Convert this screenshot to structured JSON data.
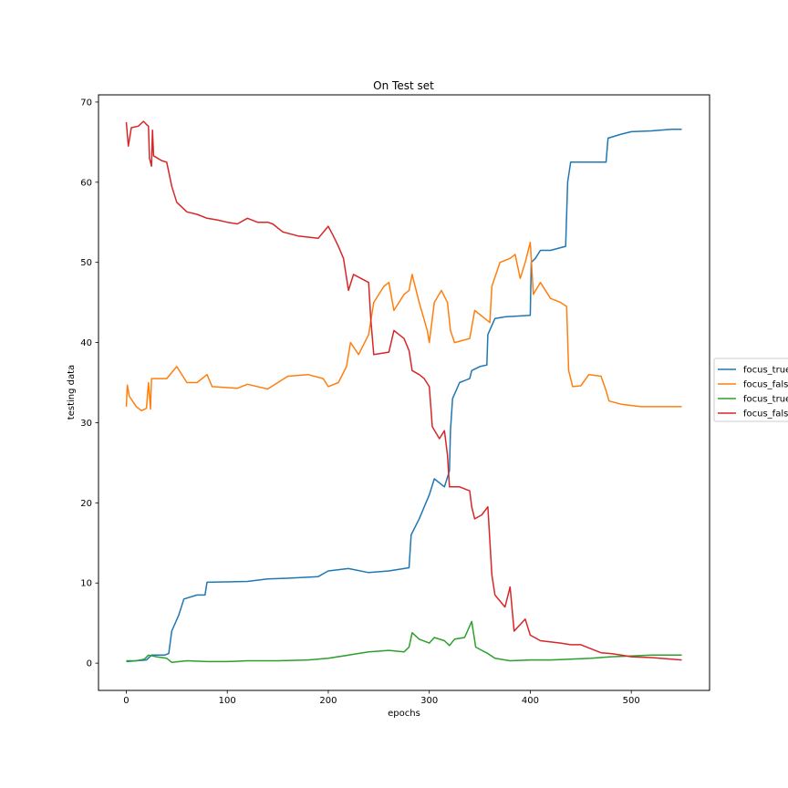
{
  "chart_data": {
    "type": "line",
    "title": "On Test set",
    "xlabel": "epochs",
    "ylabel": "testing data",
    "xlim": [
      -27.5,
      577.5
    ],
    "ylim": [
      -3.4,
      70.9
    ],
    "xticks": [
      0,
      100,
      200,
      300,
      400,
      500
    ],
    "yticks": [
      0,
      10,
      20,
      30,
      40,
      50,
      60,
      70
    ],
    "grid": false,
    "legend_position": "center-right (outside plot, clipped)",
    "series": [
      {
        "name": "focus_true",
        "color": "#1f77b4",
        "points": [
          [
            0,
            0.2
          ],
          [
            20,
            0.4
          ],
          [
            25,
            1.0
          ],
          [
            38,
            1.0
          ],
          [
            42,
            1.2
          ],
          [
            45,
            4.0
          ],
          [
            52,
            6.0
          ],
          [
            57,
            8.0
          ],
          [
            70,
            8.5
          ],
          [
            78,
            8.5
          ],
          [
            80,
            10.1
          ],
          [
            120,
            10.2
          ],
          [
            140,
            10.5
          ],
          [
            160,
            10.6
          ],
          [
            190,
            10.8
          ],
          [
            200,
            11.5
          ],
          [
            220,
            11.8
          ],
          [
            240,
            11.3
          ],
          [
            260,
            11.5
          ],
          [
            280,
            11.9
          ],
          [
            282,
            16.0
          ],
          [
            290,
            18.0
          ],
          [
            300,
            21.0
          ],
          [
            305,
            23.0
          ],
          [
            315,
            22.0
          ],
          [
            320,
            24.0
          ],
          [
            321,
            29.0
          ],
          [
            323,
            33.0
          ],
          [
            330,
            35.0
          ],
          [
            340,
            35.5
          ],
          [
            342,
            36.5
          ],
          [
            350,
            37.0
          ],
          [
            357,
            37.2
          ],
          [
            358,
            41.0
          ],
          [
            365,
            43.0
          ],
          [
            375,
            43.2
          ],
          [
            400,
            43.4
          ],
          [
            401,
            50.0
          ],
          [
            405,
            50.5
          ],
          [
            410,
            51.5
          ],
          [
            420,
            51.5
          ],
          [
            435,
            52.0
          ],
          [
            437,
            60.0
          ],
          [
            440,
            62.5
          ],
          [
            450,
            62.5
          ],
          [
            460,
            62.5
          ],
          [
            475,
            62.5
          ],
          [
            477,
            65.5
          ],
          [
            490,
            66.0
          ],
          [
            500,
            66.3
          ],
          [
            520,
            66.4
          ],
          [
            540,
            66.6
          ],
          [
            550,
            66.6
          ]
        ]
      },
      {
        "name": "focus_fals",
        "color": "#ff7f0e",
        "points": [
          [
            0,
            32.0
          ],
          [
            1,
            34.7
          ],
          [
            3,
            33.3
          ],
          [
            10,
            32.0
          ],
          [
            15,
            31.5
          ],
          [
            20,
            31.8
          ],
          [
            22,
            35.0
          ],
          [
            24,
            31.7
          ],
          [
            25,
            35.5
          ],
          [
            40,
            35.5
          ],
          [
            50,
            37.0
          ],
          [
            60,
            35.0
          ],
          [
            70,
            35.0
          ],
          [
            80,
            36.0
          ],
          [
            85,
            34.5
          ],
          [
            110,
            34.3
          ],
          [
            120,
            34.8
          ],
          [
            140,
            34.2
          ],
          [
            150,
            35.0
          ],
          [
            160,
            35.8
          ],
          [
            180,
            36.0
          ],
          [
            195,
            35.5
          ],
          [
            200,
            34.5
          ],
          [
            210,
            35.0
          ],
          [
            218,
            37.0
          ],
          [
            222,
            40.0
          ],
          [
            230,
            38.5
          ],
          [
            240,
            41.0
          ],
          [
            245,
            45.0
          ],
          [
            255,
            47.0
          ],
          [
            260,
            47.5
          ],
          [
            265,
            44.0
          ],
          [
            270,
            45.0
          ],
          [
            275,
            46.0
          ],
          [
            280,
            46.5
          ],
          [
            283,
            48.5
          ],
          [
            290,
            45.0
          ],
          [
            298,
            41.5
          ],
          [
            300,
            40.0
          ],
          [
            305,
            45.0
          ],
          [
            312,
            46.5
          ],
          [
            318,
            45.0
          ],
          [
            321,
            41.5
          ],
          [
            325,
            40.0
          ],
          [
            340,
            40.5
          ],
          [
            345,
            44.0
          ],
          [
            355,
            43.0
          ],
          [
            360,
            42.5
          ],
          [
            362,
            47.0
          ],
          [
            370,
            50.0
          ],
          [
            380,
            50.5
          ],
          [
            385,
            51.0
          ],
          [
            390,
            48.0
          ],
          [
            395,
            50.0
          ],
          [
            400,
            52.5
          ],
          [
            403,
            46.0
          ],
          [
            410,
            47.5
          ],
          [
            420,
            45.5
          ],
          [
            430,
            45.0
          ],
          [
            436,
            44.5
          ],
          [
            438,
            36.5
          ],
          [
            442,
            34.5
          ],
          [
            450,
            34.6
          ],
          [
            458,
            36.0
          ],
          [
            470,
            35.8
          ],
          [
            475,
            34.0
          ],
          [
            478,
            32.7
          ],
          [
            490,
            32.3
          ],
          [
            510,
            32.0
          ],
          [
            530,
            32.0
          ],
          [
            550,
            32.0
          ]
        ]
      },
      {
        "name": "focus_true",
        "color": "#2ca02c",
        "points": [
          [
            0,
            0.3
          ],
          [
            10,
            0.3
          ],
          [
            18,
            0.5
          ],
          [
            22,
            1.0
          ],
          [
            30,
            0.8
          ],
          [
            40,
            0.6
          ],
          [
            45,
            0.1
          ],
          [
            60,
            0.3
          ],
          [
            80,
            0.2
          ],
          [
            100,
            0.2
          ],
          [
            120,
            0.3
          ],
          [
            150,
            0.3
          ],
          [
            180,
            0.4
          ],
          [
            200,
            0.6
          ],
          [
            220,
            1.0
          ],
          [
            240,
            1.4
          ],
          [
            260,
            1.6
          ],
          [
            275,
            1.4
          ],
          [
            280,
            2.0
          ],
          [
            283,
            3.8
          ],
          [
            290,
            3.0
          ],
          [
            300,
            2.5
          ],
          [
            305,
            3.2
          ],
          [
            315,
            2.8
          ],
          [
            320,
            2.2
          ],
          [
            325,
            3.0
          ],
          [
            335,
            3.2
          ],
          [
            342,
            5.2
          ],
          [
            346,
            2.0
          ],
          [
            352,
            1.6
          ],
          [
            358,
            1.2
          ],
          [
            365,
            0.6
          ],
          [
            380,
            0.3
          ],
          [
            400,
            0.4
          ],
          [
            420,
            0.4
          ],
          [
            440,
            0.5
          ],
          [
            460,
            0.6
          ],
          [
            480,
            0.8
          ],
          [
            500,
            0.9
          ],
          [
            520,
            1.0
          ],
          [
            550,
            1.0
          ]
        ]
      },
      {
        "name": "focus_fals",
        "color": "#d62728",
        "points": [
          [
            0,
            67.5
          ],
          [
            2,
            64.5
          ],
          [
            5,
            66.8
          ],
          [
            12,
            67.0
          ],
          [
            17,
            67.6
          ],
          [
            20,
            67.2
          ],
          [
            22,
            67.0
          ],
          [
            23,
            63.0
          ],
          [
            25,
            62.0
          ],
          [
            26,
            66.5
          ],
          [
            27,
            63.3
          ],
          [
            35,
            62.7
          ],
          [
            40,
            62.5
          ],
          [
            45,
            59.5
          ],
          [
            50,
            57.5
          ],
          [
            60,
            56.3
          ],
          [
            70,
            56.0
          ],
          [
            80,
            55.5
          ],
          [
            90,
            55.3
          ],
          [
            100,
            55.0
          ],
          [
            110,
            54.8
          ],
          [
            120,
            55.5
          ],
          [
            130,
            55.0
          ],
          [
            140,
            55.0
          ],
          [
            145,
            54.8
          ],
          [
            155,
            53.8
          ],
          [
            170,
            53.3
          ],
          [
            190,
            53.0
          ],
          [
            200,
            54.5
          ],
          [
            205,
            53.3
          ],
          [
            210,
            52.0
          ],
          [
            215,
            50.5
          ],
          [
            220,
            46.5
          ],
          [
            225,
            48.5
          ],
          [
            240,
            47.5
          ],
          [
            242,
            43.0
          ],
          [
            245,
            38.5
          ],
          [
            260,
            38.8
          ],
          [
            265,
            41.5
          ],
          [
            270,
            41.0
          ],
          [
            275,
            40.5
          ],
          [
            280,
            39.0
          ],
          [
            283,
            36.5
          ],
          [
            290,
            36.0
          ],
          [
            295,
            35.5
          ],
          [
            300,
            34.5
          ],
          [
            303,
            29.5
          ],
          [
            310,
            28.0
          ],
          [
            315,
            29.0
          ],
          [
            318,
            26.0
          ],
          [
            320,
            22.0
          ],
          [
            330,
            22.0
          ],
          [
            340,
            21.5
          ],
          [
            342,
            19.5
          ],
          [
            345,
            18.0
          ],
          [
            352,
            18.5
          ],
          [
            358,
            19.5
          ],
          [
            362,
            11.0
          ],
          [
            365,
            8.5
          ],
          [
            375,
            7.0
          ],
          [
            380,
            9.5
          ],
          [
            384,
            4.0
          ],
          [
            395,
            5.5
          ],
          [
            400,
            3.5
          ],
          [
            410,
            2.8
          ],
          [
            430,
            2.5
          ],
          [
            440,
            2.3
          ],
          [
            450,
            2.3
          ],
          [
            460,
            1.8
          ],
          [
            470,
            1.3
          ],
          [
            480,
            1.2
          ],
          [
            490,
            1.0
          ],
          [
            500,
            0.8
          ],
          [
            520,
            0.7
          ],
          [
            540,
            0.5
          ],
          [
            550,
            0.4
          ]
        ]
      }
    ]
  }
}
